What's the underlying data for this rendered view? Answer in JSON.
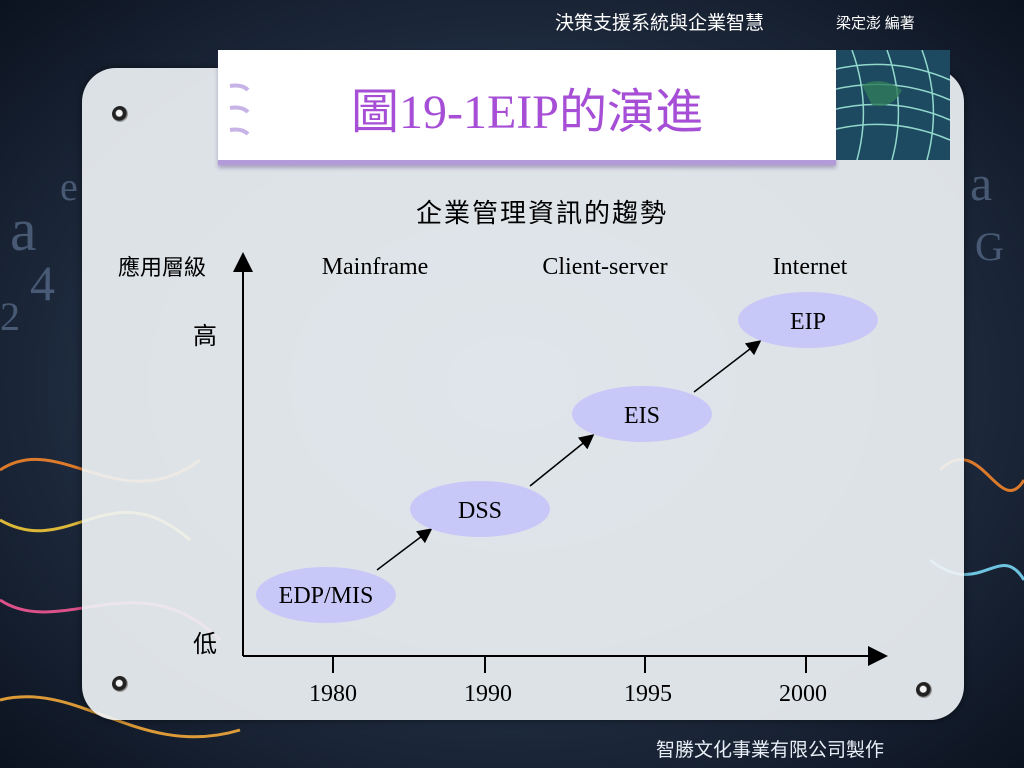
{
  "header": {
    "course_title": "決策支援系統與企業智慧",
    "author": "梁定澎 編著"
  },
  "slide": {
    "title": "圖19-1EIP的演進"
  },
  "diagram": {
    "subtitle": "企業管理資訊的趨勢",
    "y_axis_label": "應用層級",
    "y_high": "高",
    "y_low": "低",
    "eras": [
      "Mainframe",
      "Client-server",
      "Internet"
    ],
    "x_ticks": [
      "1980",
      "1990",
      "1995",
      "2000"
    ],
    "nodes": [
      {
        "label": "EDP/MIS"
      },
      {
        "label": "DSS"
      },
      {
        "label": "EIS"
      },
      {
        "label": "EIP"
      }
    ],
    "colors": {
      "node_fill": "#c8c8f8",
      "title": "#a64fd6"
    }
  },
  "footer": {
    "publisher": "智勝文化事業有限公司製作"
  }
}
